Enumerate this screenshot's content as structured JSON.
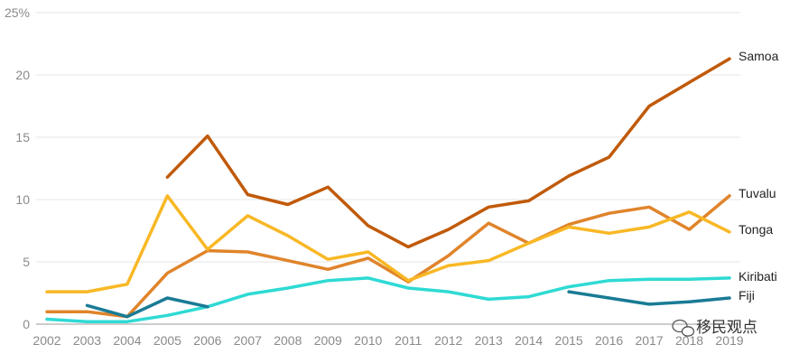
{
  "chart_data": {
    "type": "line",
    "title": "",
    "xlabel": "",
    "ylabel": "",
    "x": [
      "2002",
      "2003",
      "2004",
      "2005",
      "2006",
      "2007",
      "2008",
      "2009",
      "2010",
      "2011",
      "2012",
      "2013",
      "2014",
      "2015",
      "2016",
      "2017",
      "2018",
      "2019"
    ],
    "ylim": [
      0,
      25
    ],
    "yticks": [
      0,
      5,
      10,
      15,
      20,
      25
    ],
    "ytick_labels": [
      "0",
      "5",
      "10",
      "15",
      "20",
      "25%"
    ],
    "grid": true,
    "legend": "direct labels at right end of lines",
    "series": [
      {
        "name": "Samoa",
        "color": "#c05a0a",
        "values": [
          null,
          null,
          null,
          11.8,
          15.1,
          10.4,
          9.6,
          11.0,
          7.9,
          6.2,
          7.6,
          9.4,
          9.9,
          11.9,
          13.4,
          17.5,
          19.4,
          21.3
        ]
      },
      {
        "name": "Tuvalu",
        "color": "#e0842a",
        "values": [
          1.0,
          1.0,
          0.6,
          4.1,
          5.9,
          5.8,
          5.1,
          4.4,
          5.3,
          3.4,
          5.5,
          8.1,
          6.5,
          8.0,
          8.9,
          9.4,
          7.6,
          10.3
        ]
      },
      {
        "name": "Tonga",
        "color": "#f8b825",
        "values": [
          2.6,
          2.6,
          3.2,
          10.3,
          6.0,
          8.7,
          7.1,
          5.2,
          5.8,
          3.5,
          4.7,
          5.1,
          6.5,
          7.8,
          7.3,
          7.8,
          9.0,
          7.4
        ]
      },
      {
        "name": "Kiribati",
        "color": "#2fdad4",
        "values": [
          0.4,
          0.2,
          0.2,
          0.7,
          1.4,
          2.4,
          2.9,
          3.5,
          3.7,
          2.9,
          2.6,
          2.0,
          2.2,
          3.0,
          3.5,
          3.6,
          3.6,
          3.7
        ]
      },
      {
        "name": "Fiji",
        "color": "#1a7b95",
        "values": [
          null,
          1.5,
          0.6,
          2.1,
          1.4,
          null,
          null,
          null,
          null,
          null,
          null,
          null,
          null,
          2.6,
          2.1,
          1.6,
          1.8,
          2.1
        ]
      }
    ]
  },
  "watermark": "移民观点"
}
